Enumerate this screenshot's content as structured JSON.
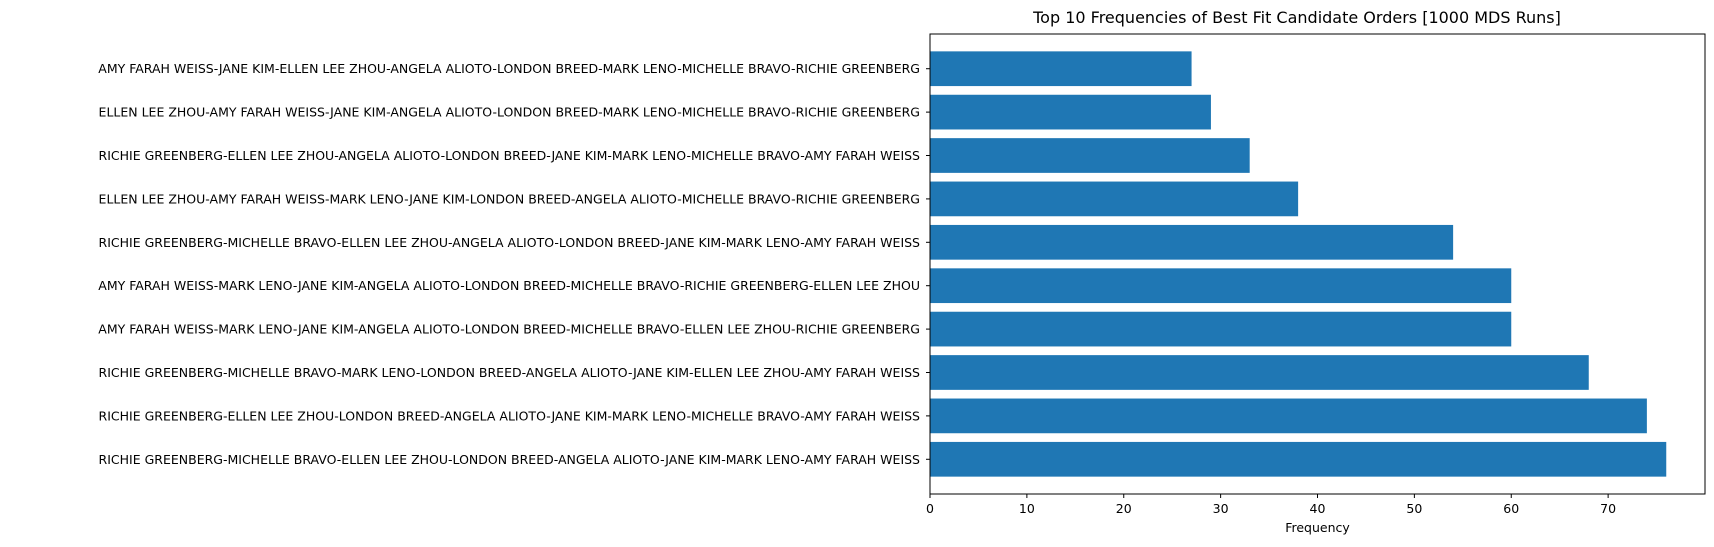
{
  "chart_data": {
    "type": "bar",
    "orientation": "horizontal",
    "title": "Top 10 Frequencies of Best Fit Candidate Orders [1000 MDS Runs]",
    "xlabel": "Frequency",
    "ylabel": "",
    "xlim": [
      0,
      80
    ],
    "xticks": [
      "0",
      "10",
      "20",
      "30",
      "40",
      "50",
      "60",
      "70"
    ],
    "grid": false,
    "color": "#1f77b4",
    "categories": [
      "RICHIE GREENBERG-MICHELLE BRAVO-ELLEN LEE ZHOU-LONDON BREED-ANGELA ALIOTO-JANE KIM-MARK LENO-AMY FARAH WEISS",
      "RICHIE GREENBERG-ELLEN LEE ZHOU-LONDON BREED-ANGELA ALIOTO-JANE KIM-MARK LENO-MICHELLE BRAVO-AMY FARAH WEISS",
      "RICHIE GREENBERG-MICHELLE BRAVO-MARK LENO-LONDON BREED-ANGELA ALIOTO-JANE KIM-ELLEN LEE ZHOU-AMY FARAH WEISS",
      "AMY FARAH WEISS-MARK LENO-JANE KIM-ANGELA ALIOTO-LONDON BREED-MICHELLE BRAVO-ELLEN LEE ZHOU-RICHIE GREENBERG",
      "AMY FARAH WEISS-MARK LENO-JANE KIM-ANGELA ALIOTO-LONDON BREED-MICHELLE BRAVO-RICHIE GREENBERG-ELLEN LEE ZHOU",
      "RICHIE GREENBERG-MICHELLE BRAVO-ELLEN LEE ZHOU-ANGELA ALIOTO-LONDON BREED-JANE KIM-MARK LENO-AMY FARAH WEISS",
      "ELLEN LEE ZHOU-AMY FARAH WEISS-MARK LENO-JANE KIM-LONDON BREED-ANGELA ALIOTO-MICHELLE BRAVO-RICHIE GREENBERG",
      "RICHIE GREENBERG-ELLEN LEE ZHOU-ANGELA ALIOTO-LONDON BREED-JANE KIM-MARK LENO-MICHELLE BRAVO-AMY FARAH WEISS",
      "ELLEN LEE ZHOU-AMY FARAH WEISS-JANE KIM-ANGELA ALIOTO-LONDON BREED-MARK LENO-MICHELLE BRAVO-RICHIE GREENBERG",
      "AMY FARAH WEISS-JANE KIM-ELLEN LEE ZHOU-ANGELA ALIOTO-LONDON BREED-MARK LENO-MICHELLE BRAVO-RICHIE GREENBERG"
    ],
    "values": [
      76,
      74,
      68,
      60,
      60,
      54,
      38,
      33,
      29,
      27
    ]
  }
}
